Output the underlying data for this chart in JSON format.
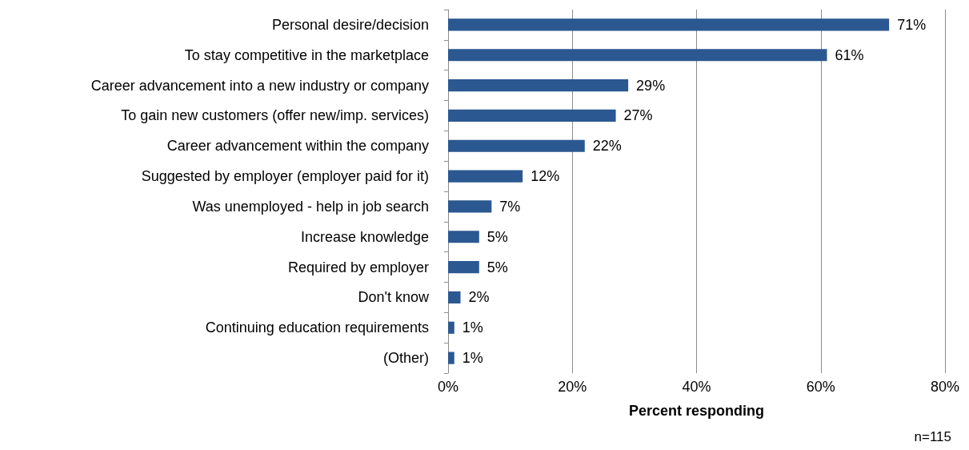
{
  "chart_data": {
    "type": "bar",
    "orientation": "horizontal",
    "xlabel": "Percent responding",
    "categories": [
      "Personal desire/decision",
      "To stay competitive in the marketplace",
      "Career advancement into a new industry or company",
      "To gain new customers (offer new/imp. services)",
      "Career advancement within the company",
      "Suggested by employer (employer paid for it)",
      "Was unemployed - help in job search",
      "Increase knowledge",
      "Required by employer",
      "Don't know",
      "Continuing education requirements",
      "(Other)"
    ],
    "values": [
      71,
      61,
      29,
      27,
      22,
      12,
      7,
      5,
      5,
      2,
      1,
      1
    ],
    "value_labels": [
      "71%",
      "61%",
      "29%",
      "27%",
      "22%",
      "12%",
      "7%",
      "5%",
      "5%",
      "2%",
      "1%",
      "1%"
    ],
    "color": "#2b5891",
    "xlim": [
      0,
      80
    ],
    "xticks": [
      {
        "value": 0,
        "label": "0%"
      },
      {
        "value": 20,
        "label": "20%"
      },
      {
        "value": 40,
        "label": "40%"
      },
      {
        "value": 60,
        "label": "60%"
      },
      {
        "value": 80,
        "label": "80%"
      }
    ],
    "grid": "x",
    "annotations": [
      "n=115"
    ]
  }
}
